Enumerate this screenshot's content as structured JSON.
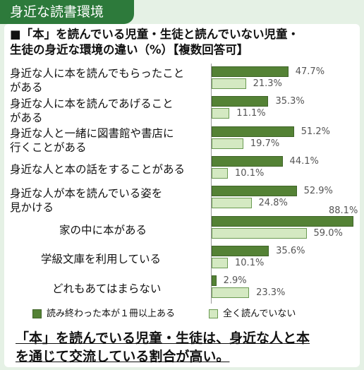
{
  "header": {
    "tab_label": "身近な読書環境"
  },
  "conclusion": "「本」を読んでいる児童・生徒は、身近な人と本\nを通じて交流している割合が高い。",
  "chart_data": {
    "type": "bar",
    "orientation": "horizontal",
    "title": "■「本」を読んでいる児童・生徒と読んでいない児童・\n生徒の身近な環境の違い（%）【複数回答可】",
    "categories": [
      "身近な人に本を読んでもらったこと\nがある",
      "身近な人に本を読んであげること\nがある",
      "身近な人と一緒に図書館や書店に\n行くことがある",
      "身近な人と本の話をすることがある",
      "身近な人が本を読んでいる姿を\n見かける",
      "家の中に本がある",
      "学級文庫を利用している",
      "どれもあてはまらない"
    ],
    "series": [
      {
        "name": "読み終わった本が１冊以上ある",
        "values": [
          47.7,
          35.3,
          51.2,
          44.1,
          52.9,
          88.1,
          35.6,
          2.9
        ],
        "labels": [
          "47.7%",
          "35.3%",
          "51.2%",
          "44.1%",
          "52.9%",
          "88.1%",
          "35.6%",
          "2.9%"
        ]
      },
      {
        "name": "全く読んでいない",
        "values": [
          21.3,
          11.1,
          19.7,
          10.1,
          24.8,
          59.0,
          10.1,
          23.3
        ],
        "labels": [
          "21.3%",
          "11.1%",
          "19.7%",
          "10.1%",
          "24.8%",
          "59.0%",
          "10.1%",
          "23.3%"
        ]
      }
    ],
    "xlim": [
      0,
      100
    ],
    "legend": "bottom",
    "grid": false,
    "colors": {
      "series0": "#548235",
      "series1": "#d4e9c2",
      "accent": "#2d7a3b"
    }
  }
}
